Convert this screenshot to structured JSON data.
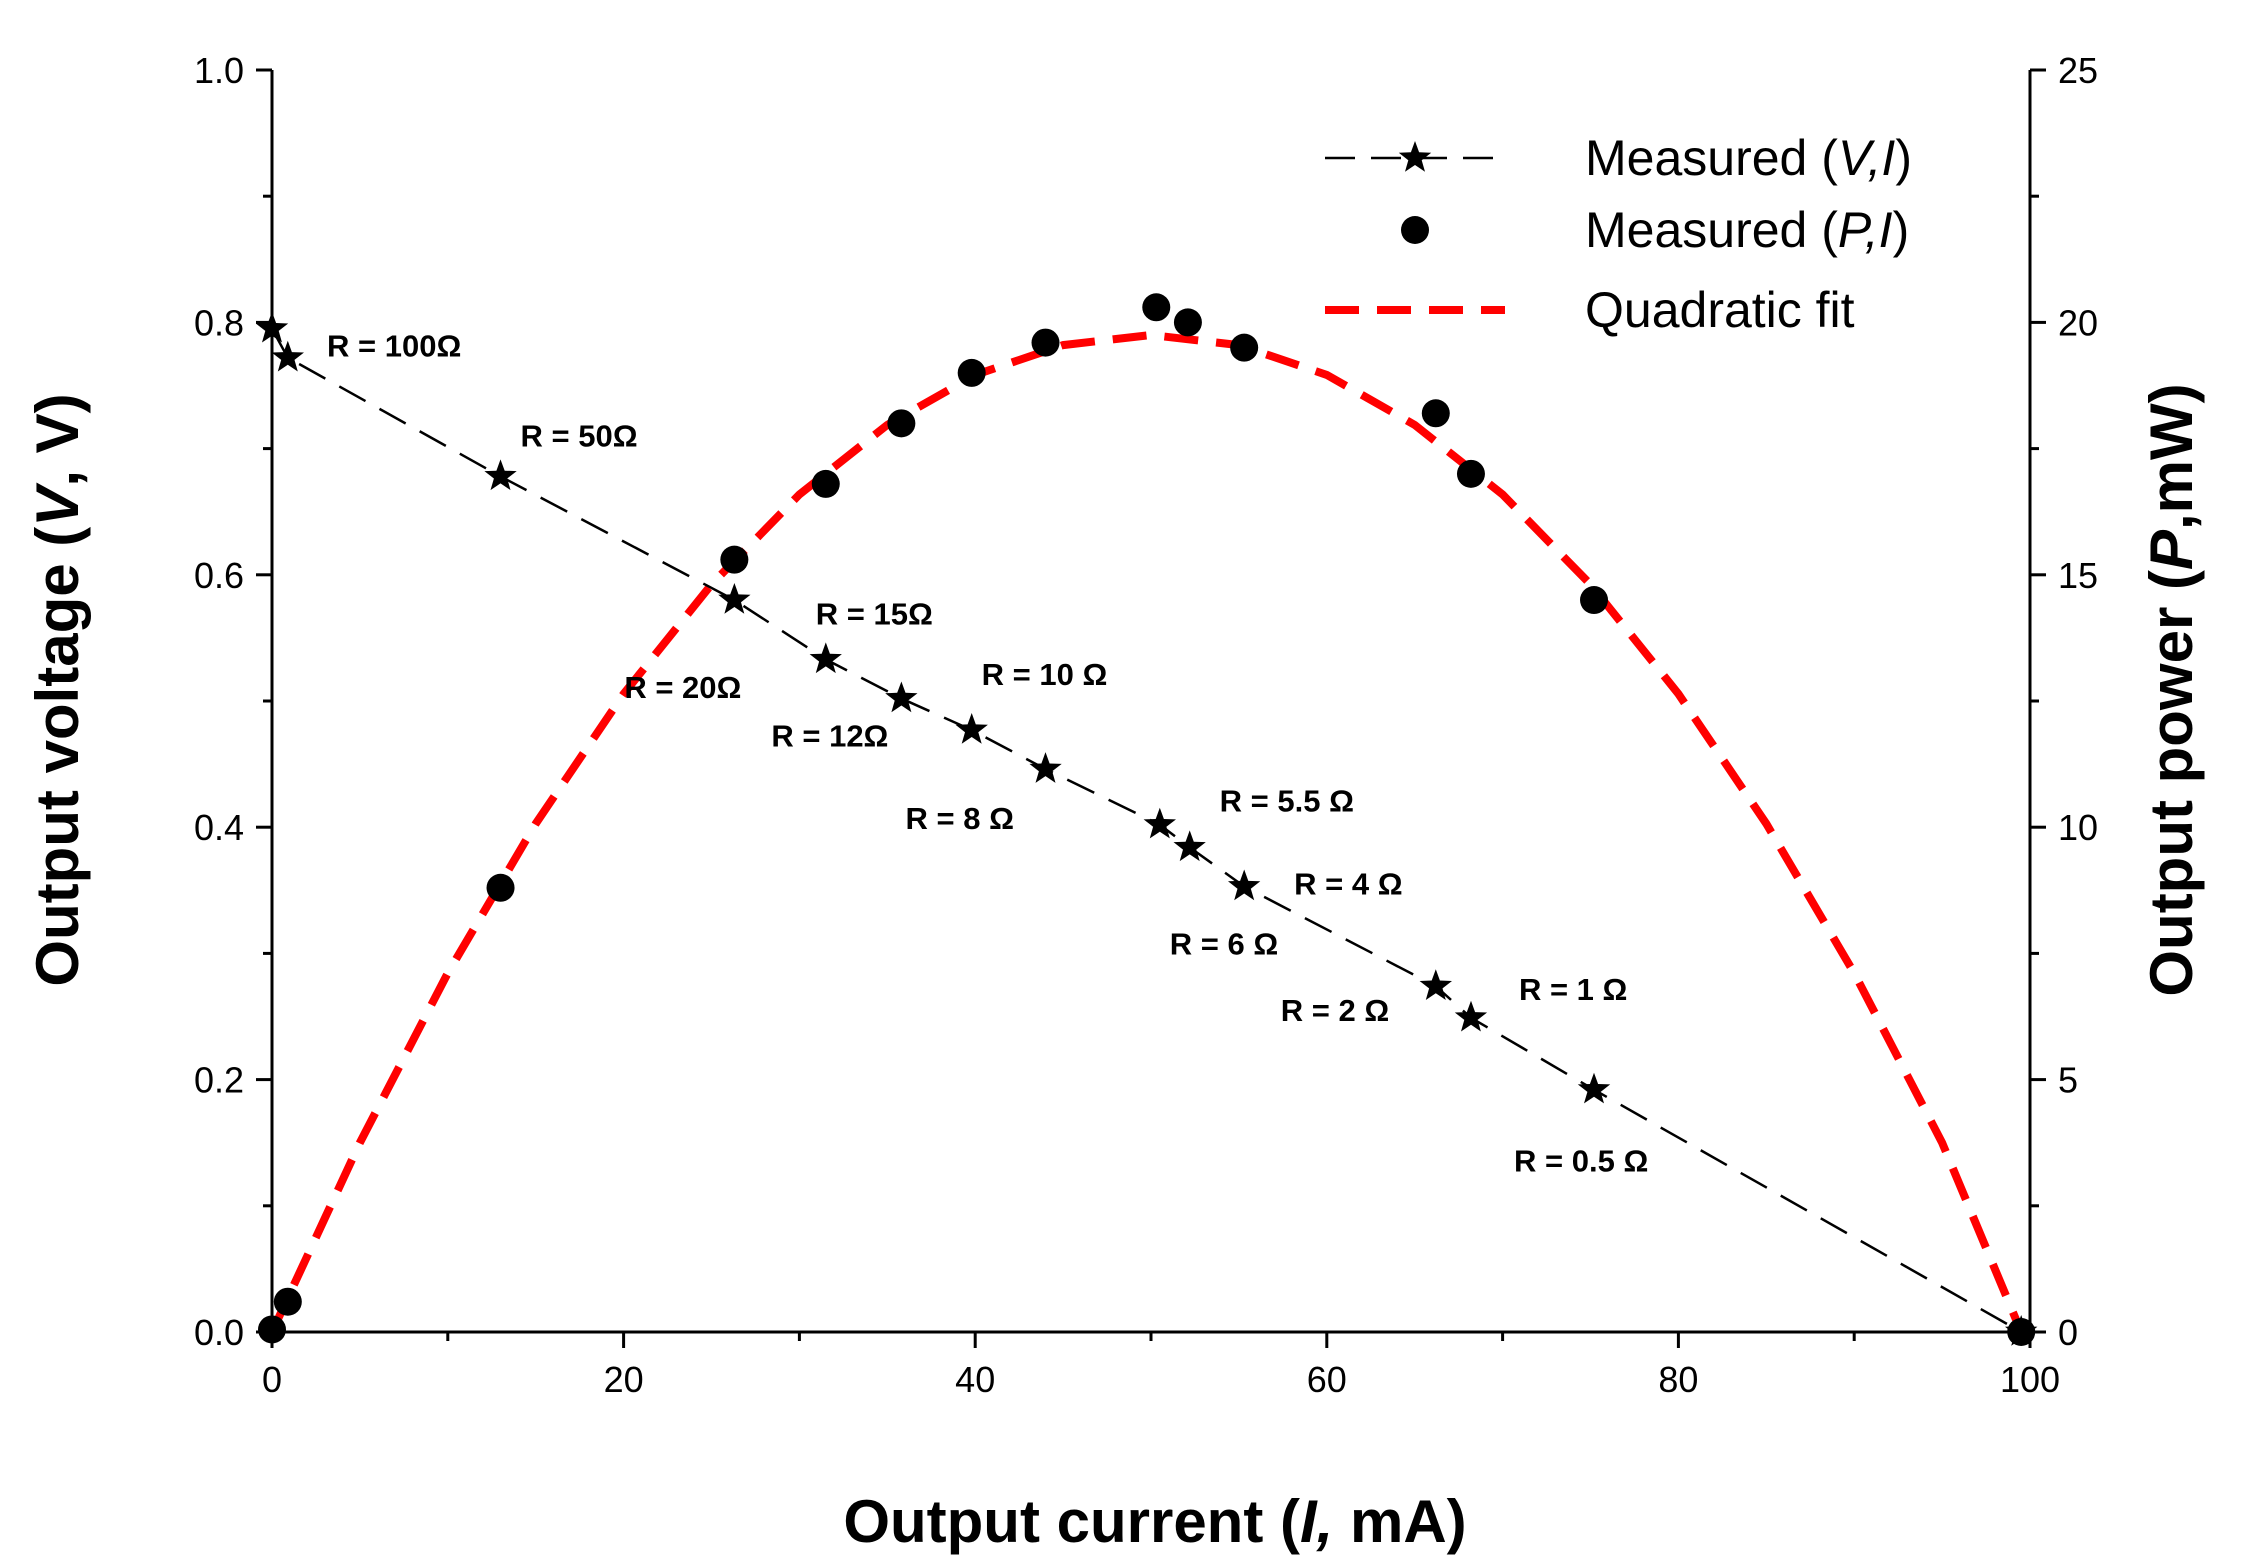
{
  "chart_data": {
    "type": "scatter",
    "xlabel": {
      "prefix": "Output current (",
      "italic": "I,",
      "suffix": " mA)"
    },
    "ylabel_left": {
      "prefix": "Output voltage (",
      "italic": "V",
      "suffix": ", V)"
    },
    "ylabel_right": {
      "prefix": "Output power (",
      "italic": "P",
      "suffix": ",mW)"
    },
    "xlim": [
      0,
      100
    ],
    "ylim_left": [
      0,
      1.0
    ],
    "ylim_right": [
      0,
      25
    ],
    "x_ticks": [
      "0",
      "20",
      "40",
      "60",
      "80",
      "100"
    ],
    "y_left_ticks": [
      "0.0",
      "0.2",
      "0.4",
      "0.6",
      "0.8",
      "1.0"
    ],
    "y_right_ticks": [
      "0",
      "5",
      "10",
      "15",
      "20",
      "25"
    ],
    "grid": false,
    "legend_position": "top-right",
    "colors": {
      "vi": "#000000",
      "pi": "#000000",
      "fit": "#ff0000"
    },
    "series": [
      {
        "name": "Measured (V,I)",
        "legend_prefix": "Measured (",
        "legend_italic": "V,I",
        "legend_suffix": ")",
        "axis": "left",
        "marker": "star",
        "line": "dashed",
        "points": [
          {
            "x": 0,
            "y": 0.795,
            "label": "R = 100Ω"
          },
          {
            "x": 0.9,
            "y": 0.772,
            "label": ""
          },
          {
            "x": 13,
            "y": 0.678,
            "label": "R = 50Ω"
          },
          {
            "x": 26.3,
            "y": 0.58,
            "label": "R = 20Ω"
          },
          {
            "x": 31.5,
            "y": 0.533,
            "label": "R = 15Ω"
          },
          {
            "x": 35.8,
            "y": 0.502,
            "label": "R = 12Ω"
          },
          {
            "x": 39.8,
            "y": 0.477,
            "label": "R = 10 Ω"
          },
          {
            "x": 44,
            "y": 0.446,
            "label": "R = 8 Ω"
          },
          {
            "x": 50.5,
            "y": 0.402,
            "label": "R = 6 Ω"
          },
          {
            "x": 52.2,
            "y": 0.384,
            "label": "R = 5.5 Ω"
          },
          {
            "x": 55.3,
            "y": 0.353,
            "label": "R = 4 Ω"
          },
          {
            "x": 66.2,
            "y": 0.274,
            "label": "R = 2 Ω"
          },
          {
            "x": 68.2,
            "y": 0.249,
            "label": "R = 1 Ω"
          },
          {
            "x": 75.2,
            "y": 0.192,
            "label": "R = 0.5 Ω"
          },
          {
            "x": 99.5,
            "y": 0.0,
            "label": ""
          }
        ]
      },
      {
        "name": "Measured (P,I)",
        "legend_prefix": "Measured (",
        "legend_italic": "P,I",
        "legend_suffix": ")",
        "axis": "right",
        "marker": "circle",
        "line": "none",
        "points": [
          {
            "x": 0,
            "y": 0.05
          },
          {
            "x": 0.9,
            "y": 0.6
          },
          {
            "x": 13,
            "y": 8.8
          },
          {
            "x": 26.3,
            "y": 15.3
          },
          {
            "x": 31.5,
            "y": 16.8
          },
          {
            "x": 35.8,
            "y": 18.0
          },
          {
            "x": 39.8,
            "y": 19.0
          },
          {
            "x": 44,
            "y": 19.6
          },
          {
            "x": 50.3,
            "y": 20.3
          },
          {
            "x": 52.1,
            "y": 20.0
          },
          {
            "x": 55.3,
            "y": 19.5
          },
          {
            "x": 66.2,
            "y": 18.2
          },
          {
            "x": 68.2,
            "y": 17.0
          },
          {
            "x": 75.2,
            "y": 14.5
          },
          {
            "x": 99.5,
            "y": 0.0
          }
        ]
      },
      {
        "name": "Quadratic fit",
        "legend_prefix": "Quadratic fit",
        "legend_italic": "",
        "legend_suffix": "",
        "axis": "right",
        "marker": "none",
        "line": "dashed-thick",
        "x": [
          0,
          5,
          10,
          15,
          20,
          25,
          30,
          35,
          40,
          45,
          50,
          55,
          60,
          65,
          70,
          75,
          80,
          85,
          90,
          95,
          99.5
        ],
        "y": [
          0,
          3.75,
          7.11,
          10.07,
          12.64,
          14.81,
          16.59,
          17.97,
          18.96,
          19.55,
          19.75,
          19.55,
          18.96,
          17.97,
          16.59,
          14.81,
          12.64,
          10.07,
          7.11,
          3.75,
          0
        ]
      }
    ]
  }
}
